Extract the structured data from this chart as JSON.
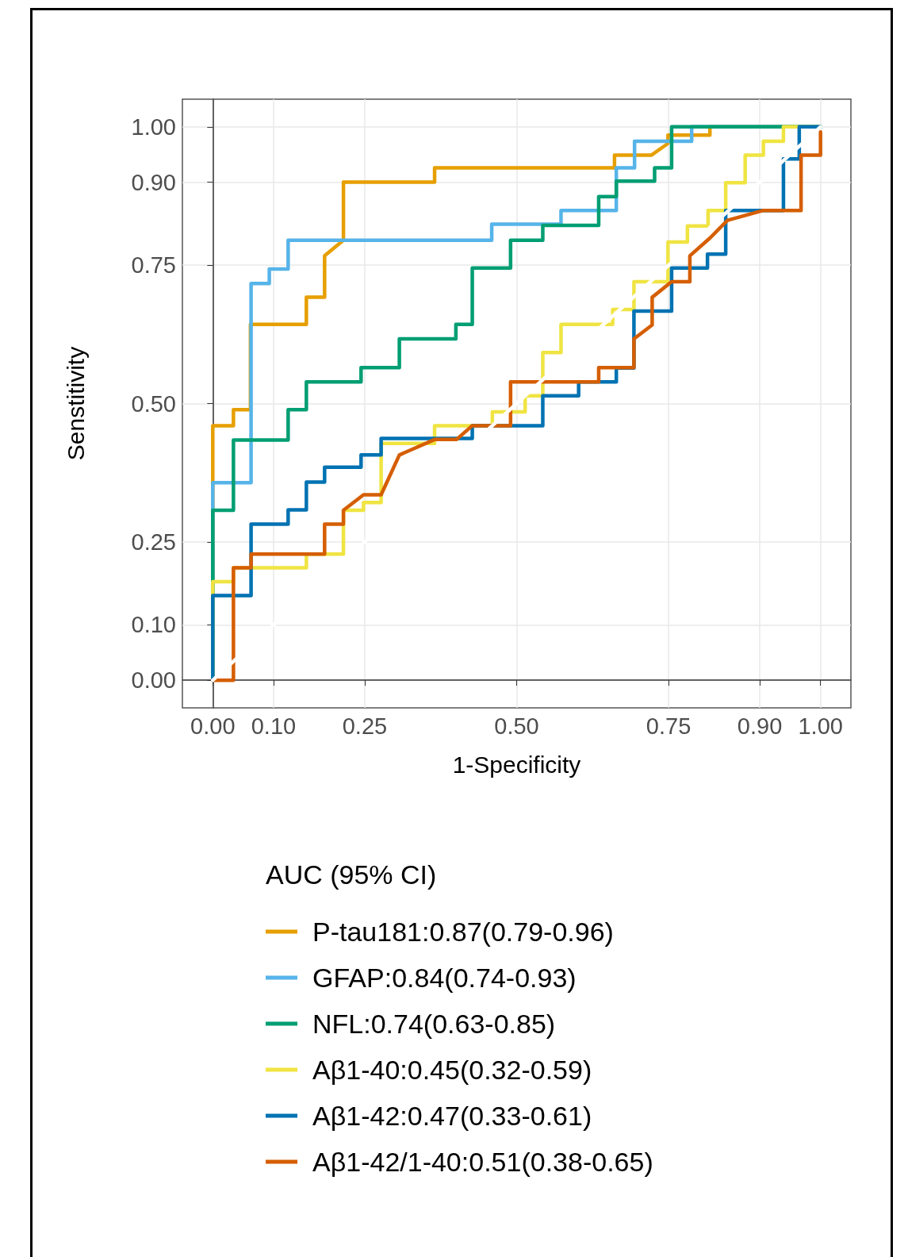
{
  "chart_data": {
    "type": "line",
    "xlabel": "1-Specificity",
    "ylabel": "Senstitivity",
    "legend_title": "AUC (95% CI)",
    "xlim": [
      -0.05,
      1.05
    ],
    "ylim": [
      -0.05,
      1.05
    ],
    "xticks": [
      {
        "value": 0,
        "label": "0.00"
      },
      {
        "value": 0.1,
        "label": "0.10"
      },
      {
        "value": 0.25,
        "label": "0.25"
      },
      {
        "value": 0.5,
        "label": "0.50"
      },
      {
        "value": 0.75,
        "label": "0.75"
      },
      {
        "value": 0.9,
        "label": "0.90"
      },
      {
        "value": 1,
        "label": "1.00"
      }
    ],
    "yticks": [
      {
        "value": 0,
        "label": "0.00"
      },
      {
        "value": 0.1,
        "label": "0.10"
      },
      {
        "value": 0.25,
        "label": "0.25"
      },
      {
        "value": 0.5,
        "label": "0.50"
      },
      {
        "value": 0.75,
        "label": "0.75"
      },
      {
        "value": 0.9,
        "label": "0.90"
      },
      {
        "value": 1,
        "label": "1.00"
      }
    ],
    "grid": true,
    "legend": "bottom",
    "marker": "none",
    "line_style": "solid",
    "series": [
      {
        "name": "P-tau181:0.87(0.79-0.96)",
        "color": "#e69f00",
        "x": [
          0,
          0,
          0.034,
          0.034,
          0.062,
          0.062,
          0.154,
          0.154,
          0.184,
          0.184,
          0.215,
          0.215,
          0.365,
          0.365,
          0.661,
          0.661,
          0.722,
          0.749,
          0.749,
          0.818,
          0.818,
          1
        ],
        "values": [
          0,
          0.46,
          0.46,
          0.489,
          0.489,
          0.643,
          0.643,
          0.692,
          0.692,
          0.767,
          0.795,
          0.9,
          0.9,
          0.926,
          0.926,
          0.949,
          0.949,
          0.97,
          0.985,
          0.985,
          1,
          1
        ]
      },
      {
        "name": "GFAP:0.84(0.74-0.93)",
        "color": "#56b4e9",
        "x": [
          0,
          0,
          0.063,
          0.063,
          0.093,
          0.093,
          0.124,
          0.124,
          0.459,
          0.459,
          0.573,
          0.573,
          0.664,
          0.664,
          0.694,
          0.694,
          0.788,
          0.788,
          1
        ],
        "values": [
          0,
          0.357,
          0.357,
          0.717,
          0.717,
          0.743,
          0.743,
          0.795,
          0.795,
          0.824,
          0.824,
          0.849,
          0.849,
          0.926,
          0.926,
          0.974,
          0.974,
          1,
          1
        ]
      },
      {
        "name": "NFL:0.74(0.63-0.85)",
        "color": "#009e73",
        "x": [
          0,
          0,
          0.034,
          0.034,
          0.124,
          0.124,
          0.154,
          0.154,
          0.244,
          0.244,
          0.307,
          0.307,
          0.4,
          0.4,
          0.427,
          0.427,
          0.49,
          0.49,
          0.543,
          0.543,
          0.635,
          0.635,
          0.664,
          0.664,
          0.727,
          0.727,
          0.755,
          0.755,
          1
        ],
        "values": [
          0,
          0.307,
          0.307,
          0.434,
          0.434,
          0.489,
          0.489,
          0.539,
          0.539,
          0.565,
          0.565,
          0.617,
          0.617,
          0.643,
          0.643,
          0.745,
          0.745,
          0.795,
          0.795,
          0.822,
          0.822,
          0.874,
          0.874,
          0.902,
          0.902,
          0.926,
          0.926,
          1,
          1
        ]
      },
      {
        "name": "Aβ1-40:0.45(0.32-0.59)",
        "color": "#f0e442",
        "x": [
          0,
          0,
          0.034,
          0.034,
          0.154,
          0.154,
          0.215,
          0.215,
          0.248,
          0.248,
          0.277,
          0.277,
          0.365,
          0.365,
          0.46,
          0.46,
          0.514,
          0.514,
          0.543,
          0.543,
          0.573,
          0.573,
          0.658,
          0.658,
          0.693,
          0.693,
          0.749,
          0.749,
          0.781,
          0.781,
          0.815,
          0.815,
          0.844,
          0.844,
          0.876,
          0.876,
          0.906,
          0.906,
          0.939,
          0.939,
          1
        ],
        "values": [
          0,
          0.178,
          0.178,
          0.203,
          0.203,
          0.228,
          0.228,
          0.307,
          0.307,
          0.321,
          0.321,
          0.428,
          0.428,
          0.46,
          0.46,
          0.485,
          0.485,
          0.514,
          0.514,
          0.592,
          0.592,
          0.643,
          0.643,
          0.67,
          0.67,
          0.72,
          0.72,
          0.792,
          0.792,
          0.821,
          0.821,
          0.849,
          0.849,
          0.899,
          0.899,
          0.949,
          0.949,
          0.974,
          0.974,
          1,
          1
        ]
      },
      {
        "name": "Aβ1-42:0.47(0.33-0.61)",
        "color": "#0072b2",
        "x": [
          0,
          0,
          0.063,
          0.063,
          0.124,
          0.124,
          0.154,
          0.154,
          0.184,
          0.184,
          0.244,
          0.244,
          0.277,
          0.277,
          0.427,
          0.427,
          0.543,
          0.543,
          0.602,
          0.602,
          0.664,
          0.664,
          0.693,
          0.693,
          0.755,
          0.755,
          0.814,
          0.814,
          0.844,
          0.844,
          0.939,
          0.939,
          0.965,
          0.965,
          1
        ],
        "values": [
          0,
          0.153,
          0.153,
          0.282,
          0.282,
          0.308,
          0.308,
          0.358,
          0.358,
          0.385,
          0.385,
          0.407,
          0.407,
          0.437,
          0.437,
          0.46,
          0.46,
          0.514,
          0.514,
          0.539,
          0.539,
          0.564,
          0.564,
          0.667,
          0.667,
          0.745,
          0.745,
          0.77,
          0.77,
          0.849,
          0.849,
          0.942,
          0.942,
          1,
          1
        ]
      },
      {
        "name": "Aβ1-42/1-40:0.51(0.38-0.65)",
        "color": "#d55e00",
        "x": [
          0,
          0.034,
          0.034,
          0.063,
          0.063,
          0.184,
          0.184,
          0.215,
          0.215,
          0.248,
          0.277,
          0.307,
          0.365,
          0.401,
          0.427,
          0.49,
          0.49,
          0.635,
          0.635,
          0.693,
          0.693,
          0.723,
          0.723,
          0.755,
          0.785,
          0.785,
          0.818,
          0.847,
          0.906,
          0.968,
          0.968,
          1,
          1
        ],
        "values": [
          0,
          0,
          0.203,
          0.203,
          0.228,
          0.228,
          0.282,
          0.282,
          0.307,
          0.335,
          0.335,
          0.407,
          0.435,
          0.435,
          0.46,
          0.46,
          0.539,
          0.539,
          0.565,
          0.565,
          0.617,
          0.642,
          0.692,
          0.72,
          0.72,
          0.767,
          0.799,
          0.831,
          0.849,
          0.849,
          0.949,
          0.949,
          0.991
        ]
      },
      {
        "color": "#ffffff",
        "x": [
          0,
          1
        ],
        "values": [
          0,
          1
        ]
      }
    ]
  }
}
